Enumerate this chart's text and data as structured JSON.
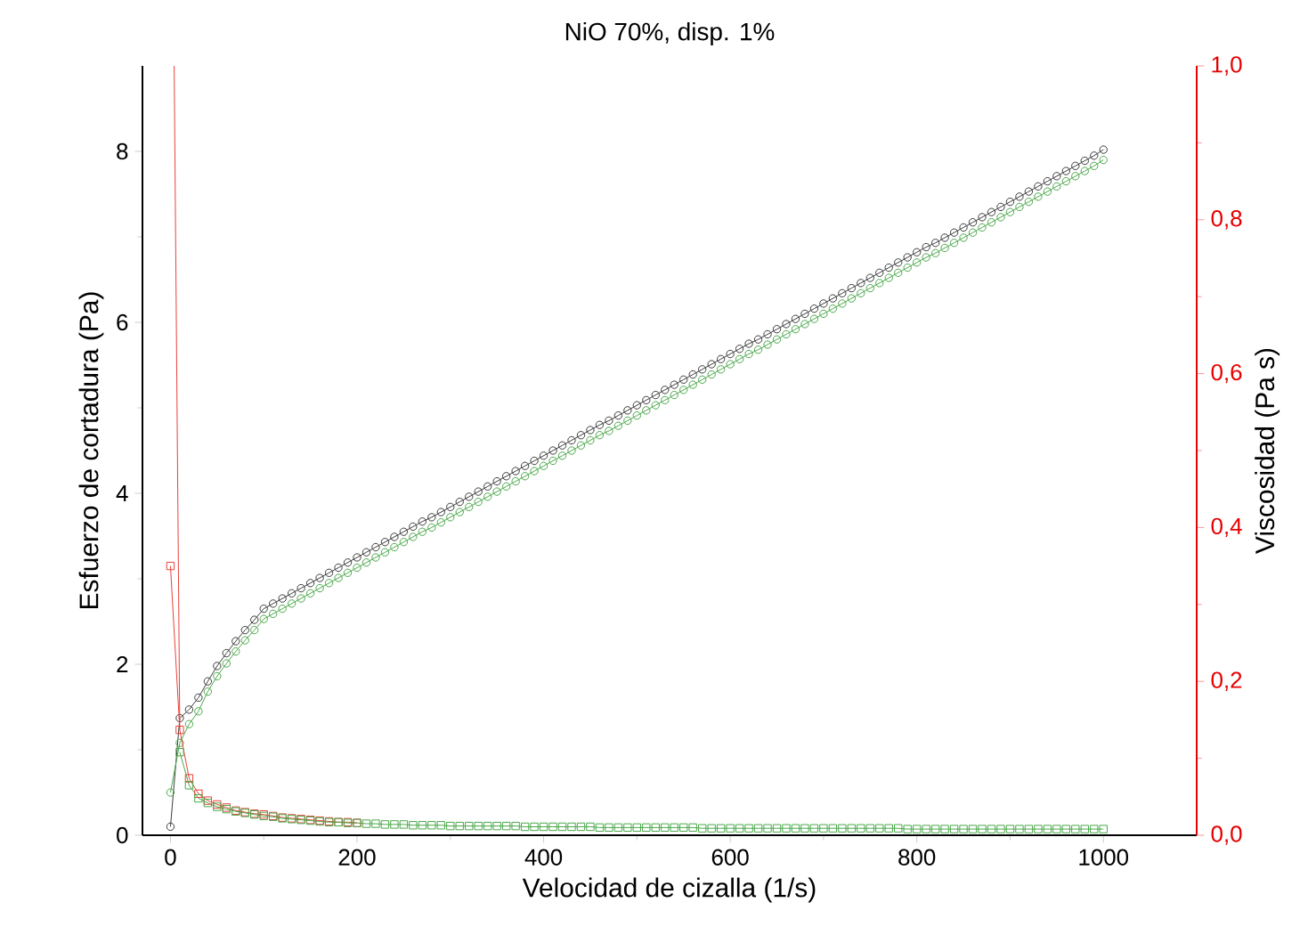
{
  "chart_data": {
    "type": "line",
    "title": "NiO 70%, disp. 1%",
    "xlabel": "Velocidad de cizalla (1/s)",
    "ylabel": "Esfuerzo de cortadura (Pa)",
    "y2label": "Viscosidad (Pa s)",
    "xlim": [
      -30,
      1100
    ],
    "xticks": [
      0,
      200,
      400,
      600,
      800,
      1000
    ],
    "ylim": [
      0,
      9
    ],
    "yticks": [
      0,
      2,
      4,
      6,
      8
    ],
    "y2lim": [
      0,
      1
    ],
    "y2ticks": [
      {
        "value": 0,
        "label": "0,0"
      },
      {
        "value": 0.2,
        "label": "0,2"
      },
      {
        "value": 0.4,
        "label": "0,4"
      },
      {
        "value": 0.6,
        "label": "0,6"
      },
      {
        "value": 0.8,
        "label": "0,8"
      },
      {
        "value": 1.0,
        "label": "1,0"
      }
    ],
    "grid": false,
    "line_style": "solid",
    "x": [
      0,
      10,
      20,
      30,
      40,
      50,
      60,
      70,
      80,
      90,
      100,
      110,
      120,
      130,
      140,
      150,
      160,
      170,
      180,
      190,
      200,
      210,
      220,
      230,
      240,
      250,
      260,
      270,
      280,
      290,
      300,
      310,
      320,
      330,
      340,
      350,
      360,
      370,
      380,
      390,
      400,
      410,
      420,
      430,
      440,
      450,
      460,
      470,
      480,
      490,
      500,
      510,
      520,
      530,
      540,
      550,
      560,
      570,
      580,
      590,
      600,
      610,
      620,
      630,
      640,
      650,
      660,
      670,
      680,
      690,
      700,
      710,
      720,
      730,
      740,
      750,
      760,
      770,
      780,
      790,
      800,
      810,
      820,
      830,
      840,
      850,
      860,
      870,
      880,
      890,
      900,
      910,
      920,
      930,
      940,
      950,
      960,
      970,
      980,
      990,
      1000
    ],
    "series": [
      {
        "color": "#3c3c3c",
        "marker": "circle",
        "values": [
          0.1,
          1.37,
          1.47,
          1.61,
          1.8,
          1.98,
          2.13,
          2.27,
          2.4,
          2.52,
          2.65,
          2.71,
          2.77,
          2.83,
          2.89,
          2.95,
          3.01,
          3.07,
          3.13,
          3.19,
          3.25,
          3.31,
          3.37,
          3.43,
          3.49,
          3.55,
          3.61,
          3.67,
          3.72,
          3.78,
          3.84,
          3.9,
          3.96,
          4.02,
          4.08,
          4.14,
          4.2,
          4.26,
          4.32,
          4.38,
          4.44,
          4.5,
          4.56,
          4.62,
          4.68,
          4.74,
          4.8,
          4.85,
          4.91,
          4.97,
          5.03,
          5.09,
          5.15,
          5.21,
          5.27,
          5.33,
          5.39,
          5.45,
          5.51,
          5.57,
          5.63,
          5.69,
          5.75,
          5.8,
          5.86,
          5.92,
          5.98,
          6.04,
          6.1,
          6.16,
          6.22,
          6.28,
          6.34,
          6.4,
          6.46,
          6.52,
          6.58,
          6.64,
          6.7,
          6.76,
          6.82,
          6.88,
          6.93,
          6.99,
          7.05,
          7.11,
          7.17,
          7.23,
          7.29,
          7.35,
          7.41,
          7.47,
          7.53,
          7.59,
          7.65,
          7.71,
          7.77,
          7.83,
          7.89,
          7.95,
          8.02
        ]
      },
      {
        "color": "#4aa84a",
        "marker": "circle",
        "values": [
          0.5,
          1.08,
          1.3,
          1.45,
          1.68,
          1.86,
          2.01,
          2.15,
          2.28,
          2.4,
          2.53,
          2.59,
          2.65,
          2.71,
          2.77,
          2.83,
          2.89,
          2.95,
          3.01,
          3.07,
          3.13,
          3.19,
          3.25,
          3.31,
          3.37,
          3.43,
          3.49,
          3.55,
          3.6,
          3.66,
          3.72,
          3.78,
          3.84,
          3.9,
          3.96,
          4.02,
          4.08,
          4.14,
          4.2,
          4.26,
          4.32,
          4.38,
          4.44,
          4.5,
          4.56,
          4.62,
          4.68,
          4.73,
          4.79,
          4.85,
          4.91,
          4.97,
          5.03,
          5.09,
          5.15,
          5.21,
          5.27,
          5.33,
          5.39,
          5.45,
          5.51,
          5.57,
          5.63,
          5.68,
          5.74,
          5.8,
          5.86,
          5.92,
          5.98,
          6.04,
          6.1,
          6.16,
          6.22,
          6.28,
          6.34,
          6.4,
          6.46,
          6.52,
          6.58,
          6.64,
          6.7,
          6.76,
          6.81,
          6.87,
          6.93,
          6.99,
          7.05,
          7.11,
          7.17,
          7.23,
          7.29,
          7.35,
          7.41,
          7.47,
          7.53,
          7.59,
          7.65,
          7.71,
          7.77,
          7.83,
          7.9
        ]
      },
      {
        "color": "#e8403a",
        "marker": "square",
        "axis": "y2",
        "values": [
          0.35,
          0.137,
          0.074,
          0.054,
          0.045,
          0.04,
          0.036,
          0.032,
          0.03,
          0.028,
          0.027,
          0.025,
          0.023,
          0.022,
          0.021,
          0.02,
          0.019,
          0.018,
          0.017,
          0.017,
          0.016,
          null,
          null,
          null,
          null,
          null,
          null,
          null,
          null,
          null,
          null,
          null,
          null,
          null,
          null,
          null,
          null,
          null,
          null,
          null,
          null,
          null,
          null,
          null,
          null,
          null,
          null,
          null,
          null,
          null,
          null,
          null,
          null,
          null,
          null,
          null,
          null,
          null,
          null,
          null,
          null,
          null,
          null,
          null,
          null,
          null,
          null,
          null,
          null,
          null,
          null,
          null,
          null,
          null,
          null,
          null,
          null,
          null,
          null,
          null,
          null,
          null,
          null,
          null,
          null,
          null,
          null,
          null,
          null,
          null,
          null,
          null,
          null,
          null,
          null,
          null,
          null,
          null,
          null,
          null,
          null
        ]
      },
      {
        "color": "#4aa84a",
        "marker": "square",
        "axis": "y2",
        "values": [
          null,
          0.108,
          0.065,
          0.048,
          0.042,
          0.037,
          0.034,
          0.031,
          0.029,
          0.027,
          0.025,
          0.024,
          0.022,
          0.021,
          0.02,
          0.019,
          0.018,
          0.017,
          0.017,
          0.016,
          0.016,
          0.015,
          0.015,
          0.014,
          0.014,
          0.014,
          0.013,
          0.013,
          0.013,
          0.013,
          0.012,
          0.012,
          0.012,
          0.012,
          0.012,
          0.012,
          0.012,
          0.012,
          0.011,
          0.011,
          0.011,
          0.011,
          0.011,
          0.011,
          0.011,
          0.011,
          0.01,
          0.01,
          0.01,
          0.01,
          0.01,
          0.01,
          0.01,
          0.01,
          0.01,
          0.01,
          0.01,
          0.009,
          0.009,
          0.009,
          0.009,
          0.009,
          0.009,
          0.009,
          0.009,
          0.009,
          0.009,
          0.009,
          0.009,
          0.009,
          0.009,
          0.009,
          0.009,
          0.009,
          0.009,
          0.009,
          0.009,
          0.009,
          0.009,
          0.008,
          0.008,
          0.008,
          0.008,
          0.008,
          0.008,
          0.008,
          0.008,
          0.008,
          0.008,
          0.008,
          0.008,
          0.008,
          0.008,
          0.008,
          0.008,
          0.008,
          0.008,
          0.008,
          0.008,
          0.008,
          0.008
        ]
      },
      {
        "color": "#e8403a",
        "marker": "none",
        "axis": "y2",
        "x": [
          4,
          10
        ],
        "values": [
          1.0,
          0.137
        ]
      }
    ]
  }
}
